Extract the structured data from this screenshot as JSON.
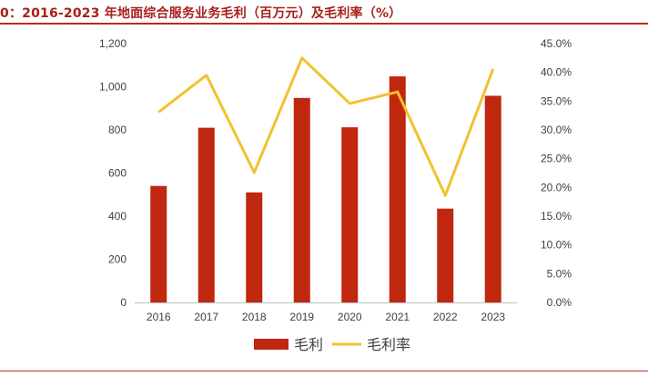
{
  "title": "0：2016-2023 年地面综合服务业务毛利（百万元）及毛利率（%）",
  "colors": {
    "bar": "#c0270f",
    "line": "#f2c12e",
    "axis": "#bfbfbf",
    "rule": "#c0271d"
  },
  "chart_data": {
    "type": "bar+line",
    "categories": [
      "2016",
      "2017",
      "2018",
      "2019",
      "2020",
      "2021",
      "2022",
      "2023"
    ],
    "series": [
      {
        "name": "毛利",
        "type": "bar",
        "axis": "left",
        "values": [
          540,
          810,
          510,
          948,
          812,
          1048,
          435,
          958
        ]
      },
      {
        "name": "毛利率",
        "type": "line",
        "axis": "right",
        "values": [
          0.331,
          0.395,
          0.226,
          0.425,
          0.346,
          0.366,
          0.186,
          0.406
        ]
      }
    ],
    "y_left": {
      "min": 0,
      "max": 1200,
      "step": 200,
      "tick_labels": [
        "0",
        "200",
        "400",
        "600",
        "800",
        "1,000",
        "1,200"
      ]
    },
    "y_right": {
      "min": 0,
      "max": 0.45,
      "step": 0.05,
      "tick_labels": [
        "0.0%",
        "5.0%",
        "10.0%",
        "15.0%",
        "20.0%",
        "25.0%",
        "30.0%",
        "35.0%",
        "40.0%",
        "45.0%"
      ]
    },
    "legend": {
      "position": "bottom",
      "entries": [
        "毛利",
        "毛利率"
      ]
    },
    "grid": false
  }
}
